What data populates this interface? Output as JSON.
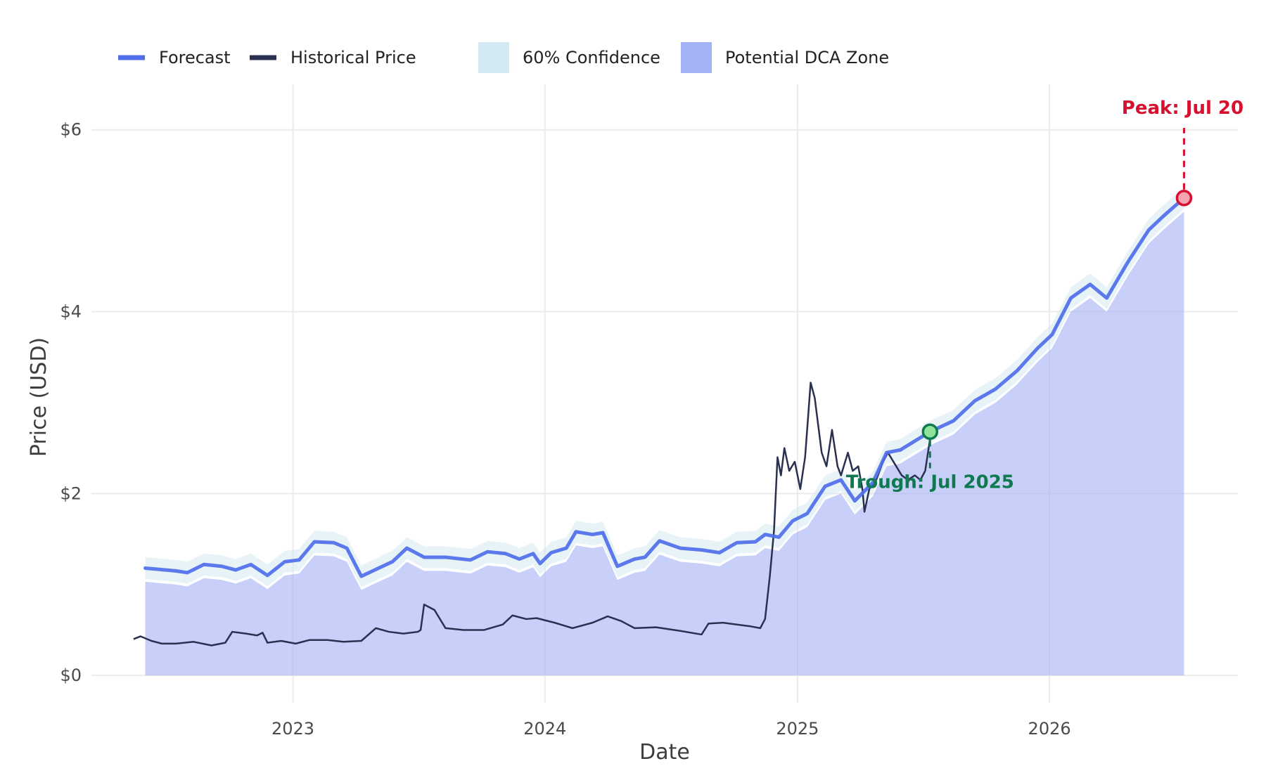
{
  "colors": {
    "forecast": "#4f6fea",
    "historical": "#2a3050",
    "confidence": "#d3e9f1",
    "dca_zone": "#a3b1f6",
    "peak": "#d7102f",
    "trough": "#0f7a50",
    "trough_fill": "#8fe39a",
    "grid": "#ebebeb"
  },
  "chart_data": {
    "type": "line",
    "title": "",
    "xlabel": "Date",
    "ylabel": "Price (USD)",
    "xlim": [
      "2022-03-15",
      "2026-10-01"
    ],
    "ylim": [
      -0.3,
      6.5
    ],
    "x_ticks": [
      {
        "date": "2023-01-01",
        "label": "2023"
      },
      {
        "date": "2024-01-01",
        "label": "2024"
      },
      {
        "date": "2025-01-01",
        "label": "2025"
      },
      {
        "date": "2026-01-01",
        "label": "2026"
      }
    ],
    "y_ticks": [
      {
        "value": 0,
        "label": "$0"
      },
      {
        "value": 2,
        "label": "$2"
      },
      {
        "value": 4,
        "label": "$4"
      },
      {
        "value": 6,
        "label": "$6"
      }
    ],
    "grid": true,
    "legend": {
      "position": "top-left",
      "entries": [
        {
          "label": "Forecast",
          "kind": "line",
          "color_key": "forecast"
        },
        {
          "label": "Historical Price",
          "kind": "line",
          "color_key": "historical"
        },
        {
          "label": "60% Confidence",
          "kind": "patch",
          "color_key": "confidence"
        },
        {
          "label": "Potential DCA Zone",
          "kind": "patch",
          "color_key": "dca_zone"
        }
      ]
    },
    "series": [
      {
        "name": "Forecast",
        "kind": "line",
        "points": [
          [
            "2022-06-01",
            1.18
          ],
          [
            "2022-07-15",
            1.15
          ],
          [
            "2022-08-01",
            1.13
          ],
          [
            "2022-08-25",
            1.22
          ],
          [
            "2022-09-20",
            1.2
          ],
          [
            "2022-10-10",
            1.16
          ],
          [
            "2022-11-01",
            1.22
          ],
          [
            "2022-11-25",
            1.1
          ],
          [
            "2022-12-20",
            1.25
          ],
          [
            "2023-01-10",
            1.27
          ],
          [
            "2023-02-01",
            1.47
          ],
          [
            "2023-03-01",
            1.46
          ],
          [
            "2023-03-20",
            1.4
          ],
          [
            "2023-04-10",
            1.09
          ],
          [
            "2023-05-05",
            1.18
          ],
          [
            "2023-05-25",
            1.25
          ],
          [
            "2023-06-15",
            1.4
          ],
          [
            "2023-07-10",
            1.3
          ],
          [
            "2023-08-10",
            1.3
          ],
          [
            "2023-09-15",
            1.27
          ],
          [
            "2023-10-10",
            1.36
          ],
          [
            "2023-11-05",
            1.34
          ],
          [
            "2023-11-25",
            1.28
          ],
          [
            "2023-12-15",
            1.34
          ],
          [
            "2023-12-25",
            1.23
          ],
          [
            "2024-01-10",
            1.35
          ],
          [
            "2024-02-01",
            1.4
          ],
          [
            "2024-02-15",
            1.58
          ],
          [
            "2024-03-10",
            1.55
          ],
          [
            "2024-03-25",
            1.57
          ],
          [
            "2024-04-15",
            1.2
          ],
          [
            "2024-05-10",
            1.28
          ],
          [
            "2024-05-25",
            1.3
          ],
          [
            "2024-06-15",
            1.48
          ],
          [
            "2024-07-15",
            1.4
          ],
          [
            "2024-08-15",
            1.38
          ],
          [
            "2024-09-10",
            1.35
          ],
          [
            "2024-10-05",
            1.46
          ],
          [
            "2024-11-01",
            1.47
          ],
          [
            "2024-11-15",
            1.55
          ],
          [
            "2024-12-05",
            1.52
          ],
          [
            "2024-12-25",
            1.7
          ],
          [
            "2025-01-15",
            1.78
          ],
          [
            "2025-02-10",
            2.08
          ],
          [
            "2025-03-05",
            2.15
          ],
          [
            "2025-03-25",
            1.92
          ],
          [
            "2025-04-20",
            2.12
          ],
          [
            "2025-05-10",
            2.45
          ],
          [
            "2025-05-30",
            2.48
          ],
          [
            "2025-07-12",
            2.68
          ],
          [
            "2025-08-15",
            2.8
          ],
          [
            "2025-09-15",
            3.02
          ],
          [
            "2025-10-15",
            3.15
          ],
          [
            "2025-11-15",
            3.35
          ],
          [
            "2025-12-15",
            3.6
          ],
          [
            "2026-01-05",
            3.75
          ],
          [
            "2026-02-01",
            4.15
          ],
          [
            "2026-03-01",
            4.3
          ],
          [
            "2026-03-25",
            4.15
          ],
          [
            "2026-04-25",
            4.55
          ],
          [
            "2026-05-25",
            4.9
          ],
          [
            "2026-06-15",
            5.05
          ],
          [
            "2026-07-15",
            5.25
          ]
        ]
      },
      {
        "name": "Historical Price",
        "kind": "line",
        "points": [
          [
            "2022-05-15",
            0.4
          ],
          [
            "2022-05-25",
            0.43
          ],
          [
            "2022-06-10",
            0.38
          ],
          [
            "2022-06-25",
            0.35
          ],
          [
            "2022-07-15",
            0.35
          ],
          [
            "2022-08-10",
            0.37
          ],
          [
            "2022-09-05",
            0.33
          ],
          [
            "2022-09-25",
            0.36
          ],
          [
            "2022-10-05",
            0.48
          ],
          [
            "2022-10-25",
            0.46
          ],
          [
            "2022-11-10",
            0.44
          ],
          [
            "2022-11-18",
            0.47
          ],
          [
            "2022-11-25",
            0.36
          ],
          [
            "2022-12-15",
            0.38
          ],
          [
            "2023-01-05",
            0.35
          ],
          [
            "2023-01-25",
            0.39
          ],
          [
            "2023-02-20",
            0.39
          ],
          [
            "2023-03-15",
            0.37
          ],
          [
            "2023-04-10",
            0.38
          ],
          [
            "2023-05-01",
            0.52
          ],
          [
            "2023-05-20",
            0.48
          ],
          [
            "2023-06-10",
            0.46
          ],
          [
            "2023-07-01",
            0.48
          ],
          [
            "2023-07-05",
            0.5
          ],
          [
            "2023-07-10",
            0.78
          ],
          [
            "2023-07-25",
            0.72
          ],
          [
            "2023-08-10",
            0.52
          ],
          [
            "2023-09-05",
            0.5
          ],
          [
            "2023-10-05",
            0.5
          ],
          [
            "2023-11-01",
            0.56
          ],
          [
            "2023-11-15",
            0.66
          ],
          [
            "2023-12-05",
            0.62
          ],
          [
            "2023-12-20",
            0.63
          ],
          [
            "2024-01-15",
            0.58
          ],
          [
            "2024-02-10",
            0.52
          ],
          [
            "2024-03-10",
            0.58
          ],
          [
            "2024-04-01",
            0.65
          ],
          [
            "2024-04-20",
            0.6
          ],
          [
            "2024-05-10",
            0.52
          ],
          [
            "2024-06-10",
            0.53
          ],
          [
            "2024-07-15",
            0.49
          ],
          [
            "2024-08-15",
            0.45
          ],
          [
            "2024-08-25",
            0.57
          ],
          [
            "2024-09-15",
            0.58
          ],
          [
            "2024-10-05",
            0.56
          ],
          [
            "2024-10-25",
            0.54
          ],
          [
            "2024-11-08",
            0.52
          ],
          [
            "2024-11-15",
            0.62
          ],
          [
            "2024-11-22",
            1.1
          ],
          [
            "2024-11-28",
            1.6
          ],
          [
            "2024-12-03",
            2.4
          ],
          [
            "2024-12-08",
            2.2
          ],
          [
            "2024-12-13",
            2.5
          ],
          [
            "2024-12-20",
            2.25
          ],
          [
            "2024-12-28",
            2.35
          ],
          [
            "2025-01-05",
            2.05
          ],
          [
            "2025-01-12",
            2.4
          ],
          [
            "2025-01-20",
            3.22
          ],
          [
            "2025-01-26",
            3.05
          ],
          [
            "2025-02-05",
            2.45
          ],
          [
            "2025-02-12",
            2.3
          ],
          [
            "2025-02-20",
            2.7
          ],
          [
            "2025-02-28",
            2.3
          ],
          [
            "2025-03-05",
            2.2
          ],
          [
            "2025-03-15",
            2.45
          ],
          [
            "2025-03-22",
            2.25
          ],
          [
            "2025-03-30",
            2.3
          ],
          [
            "2025-04-05",
            2.05
          ],
          [
            "2025-04-08",
            1.8
          ],
          [
            "2025-04-15",
            2.05
          ],
          [
            "2025-04-25",
            2.15
          ],
          [
            "2025-05-05",
            2.35
          ],
          [
            "2025-05-12",
            2.45
          ],
          [
            "2025-05-20",
            2.35
          ],
          [
            "2025-06-01",
            2.2
          ],
          [
            "2025-06-10",
            2.15
          ],
          [
            "2025-06-20",
            2.2
          ],
          [
            "2025-06-28",
            2.15
          ],
          [
            "2025-07-05",
            2.25
          ],
          [
            "2025-07-12",
            2.6
          ]
        ]
      },
      {
        "name": "60% Confidence",
        "kind": "band",
        "note": "band half-width around Forecast",
        "half_width": 0.12
      },
      {
        "name": "Potential DCA Zone",
        "kind": "area",
        "note": "area from 0 to Forecast minus offset",
        "offset": 0.15
      }
    ],
    "annotations": [
      {
        "label": "Peak: Jul 20",
        "date": "2026-07-15",
        "value": 5.25,
        "color_key": "peak"
      },
      {
        "label": "Trough: Jul 2025",
        "date": "2025-07-12",
        "value": 2.68,
        "color_key": "trough"
      }
    ]
  }
}
